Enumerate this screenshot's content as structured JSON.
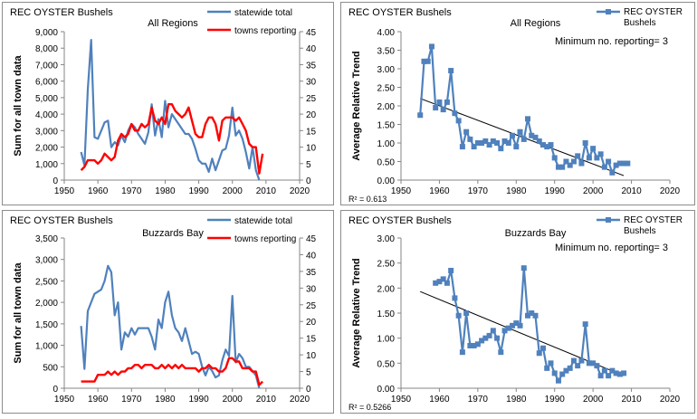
{
  "chart_data": [
    {
      "type": "line",
      "corner_label": "REC OYSTER Bushels",
      "title": "All Regions",
      "xlabel": "",
      "ylabel": "Sum for all town data",
      "xlim": [
        1950,
        2020
      ],
      "x_ticks": [
        "1950",
        "1960",
        "1970",
        "1980",
        "1990",
        "2000",
        "2010",
        "2020"
      ],
      "ylim": [
        0,
        9000
      ],
      "y_ticks": [
        "0",
        "1,000",
        "2,000",
        "3,000",
        "4,000",
        "5,000",
        "6,000",
        "7,000",
        "8,000",
        "9,000"
      ],
      "y2lim": [
        0,
        45
      ],
      "y2_ticks": [
        "0",
        "5",
        "10",
        "15",
        "20",
        "25",
        "30",
        "35",
        "40",
        "45"
      ],
      "legend": "top-right",
      "series": [
        {
          "name": "statewide total",
          "axis": "left",
          "color": "#4f81bd",
          "x": [
            1955,
            1956,
            1957,
            1958,
            1959,
            1960,
            1961,
            1962,
            1963,
            1964,
            1965,
            1966,
            1967,
            1968,
            1969,
            1970,
            1971,
            1972,
            1973,
            1974,
            1975,
            1976,
            1977,
            1978,
            1979,
            1980,
            1981,
            1982,
            1983,
            1984,
            1985,
            1986,
            1987,
            1988,
            1989,
            1990,
            1991,
            1992,
            1993,
            1994,
            1995,
            1996,
            1997,
            1998,
            1999,
            2000,
            2001,
            2002,
            2003,
            2004,
            2005,
            2006,
            2007,
            2008
          ],
          "values": [
            1700,
            900,
            5500,
            8500,
            2600,
            2500,
            3000,
            3500,
            3600,
            2000,
            2300,
            2100,
            2700,
            2300,
            3000,
            3400,
            3200,
            2800,
            2500,
            2200,
            2900,
            4600,
            2700,
            3700,
            2600,
            4800,
            3200,
            4000,
            3700,
            3400,
            3100,
            2800,
            2800,
            2500,
            1900,
            1200,
            1000,
            1000,
            500,
            1300,
            600,
            1200,
            1800,
            1900,
            2700,
            4400,
            2700,
            3000,
            2500,
            1700,
            700,
            2000,
            600,
            0
          ]
        },
        {
          "name": "towns reporting",
          "axis": "right",
          "color": "#ff0000",
          "x": [
            1955,
            1956,
            1957,
            1958,
            1959,
            1960,
            1961,
            1962,
            1963,
            1964,
            1965,
            1966,
            1967,
            1968,
            1969,
            1970,
            1971,
            1972,
            1973,
            1974,
            1975,
            1976,
            1977,
            1978,
            1979,
            1980,
            1981,
            1982,
            1983,
            1984,
            1985,
            1986,
            1987,
            1988,
            1989,
            1990,
            1991,
            1992,
            1993,
            1994,
            1995,
            1996,
            1997,
            1998,
            1999,
            2000,
            2001,
            2002,
            2003,
            2004,
            2005,
            2006,
            2007,
            2008,
            2009
          ],
          "values": [
            3,
            4,
            6,
            6,
            6,
            5,
            6,
            8,
            7,
            6,
            7,
            12,
            14,
            13,
            14,
            17,
            15,
            15,
            17,
            16,
            17,
            22,
            18,
            17,
            19,
            17,
            23,
            23,
            21,
            20,
            19,
            20,
            22,
            18,
            14,
            13,
            13,
            17,
            19,
            19,
            17,
            12,
            18,
            19,
            19,
            19,
            18,
            19,
            17,
            15,
            11,
            10,
            10,
            2,
            8
          ]
        }
      ]
    },
    {
      "type": "line",
      "corner_label": "REC OYSTER Bushels",
      "title": "All Regions",
      "annotation": "Minimum no. reporting= 3",
      "r2_label": "R² = 0.613",
      "xlabel": "",
      "ylabel": "Average Relative Trend",
      "xlim": [
        1950,
        2020
      ],
      "x_ticks": [
        "1950",
        "1960",
        "1970",
        "1980",
        "1990",
        "2000",
        "2010",
        "2020"
      ],
      "ylim": [
        0,
        4
      ],
      "y_ticks": [
        "0.00",
        "0.50",
        "1.00",
        "1.50",
        "2.00",
        "2.50",
        "3.00",
        "3.50",
        "4.00"
      ],
      "legend": "top-right",
      "trend": {
        "x": [
          1955,
          2008
        ],
        "y": [
          2.2,
          0.12
        ]
      },
      "series": [
        {
          "name": "REC OYSTER Bushels",
          "color": "#4f81bd",
          "x": [
            1955,
            1956,
            1957,
            1958,
            1959,
            1960,
            1961,
            1962,
            1963,
            1964,
            1965,
            1966,
            1967,
            1968,
            1969,
            1970,
            1971,
            1972,
            1973,
            1974,
            1975,
            1976,
            1977,
            1978,
            1979,
            1980,
            1981,
            1982,
            1983,
            1984,
            1985,
            1986,
            1987,
            1988,
            1989,
            1990,
            1991,
            1992,
            1993,
            1994,
            1995,
            1996,
            1997,
            1998,
            1999,
            2000,
            2001,
            2002,
            2003,
            2004,
            2005,
            2006,
            2007,
            2008,
            2009
          ],
          "values": [
            1.75,
            3.2,
            3.2,
            3.6,
            1.95,
            2.1,
            1.9,
            2.1,
            2.95,
            1.8,
            1.6,
            0.9,
            1.3,
            1.1,
            0.9,
            1.0,
            1.0,
            1.05,
            0.95,
            1.05,
            1.0,
            0.85,
            1.05,
            1.0,
            1.2,
            0.9,
            1.3,
            1.1,
            1.65,
            1.2,
            1.15,
            1.05,
            0.95,
            0.9,
            0.95,
            0.6,
            0.35,
            0.35,
            0.5,
            0.4,
            0.5,
            0.65,
            0.45,
            1.0,
            0.6,
            0.85,
            0.6,
            0.7,
            0.35,
            0.5,
            0.2,
            0.4,
            0.45,
            0.45,
            0.45
          ]
        }
      ]
    },
    {
      "type": "line",
      "corner_label": "REC OYSTER Bushels",
      "title": "Buzzards Bay",
      "xlabel": "",
      "ylabel": "Sum for all town data",
      "xlim": [
        1950,
        2020
      ],
      "x_ticks": [
        "1950",
        "1960",
        "1970",
        "1980",
        "1990",
        "2000",
        "2010",
        "2020"
      ],
      "ylim": [
        0,
        3500
      ],
      "y_ticks": [
        "0",
        "500",
        "1,000",
        "1,500",
        "2,000",
        "2,500",
        "3,000",
        "3,500"
      ],
      "y2lim": [
        0,
        45
      ],
      "y2_ticks": [
        "0",
        "5",
        "10",
        "15",
        "20",
        "25",
        "30",
        "35",
        "40",
        "45"
      ],
      "legend": "top-right",
      "series": [
        {
          "name": "statewide total",
          "axis": "left",
          "color": "#4f81bd",
          "x": [
            1955,
            1956,
            1957,
            1958,
            1959,
            1960,
            1961,
            1962,
            1963,
            1964,
            1965,
            1966,
            1967,
            1968,
            1969,
            1970,
            1971,
            1972,
            1973,
            1974,
            1975,
            1976,
            1977,
            1978,
            1979,
            1980,
            1981,
            1982,
            1983,
            1984,
            1985,
            1986,
            1987,
            1988,
            1989,
            1990,
            1991,
            1992,
            1993,
            1994,
            1995,
            1996,
            1997,
            1998,
            1999,
            2000,
            2001,
            2002,
            2003,
            2004,
            2005,
            2006,
            2007,
            2008
          ],
          "values": [
            1450,
            450,
            1800,
            2000,
            2200,
            2250,
            2300,
            2500,
            2850,
            2700,
            1700,
            2000,
            900,
            1300,
            1200,
            1400,
            1250,
            1400,
            1400,
            1400,
            1400,
            1200,
            900,
            1600,
            1400,
            2000,
            2250,
            1700,
            1400,
            1300,
            1100,
            1400,
            1100,
            800,
            850,
            800,
            500,
            300,
            500,
            400,
            250,
            300,
            650,
            900,
            750,
            2150,
            600,
            800,
            700,
            500,
            500,
            400,
            300,
            0
          ]
        },
        {
          "name": "towns reporting",
          "axis": "right",
          "color": "#ff0000",
          "x": [
            1955,
            1956,
            1957,
            1958,
            1959,
            1960,
            1961,
            1962,
            1963,
            1964,
            1965,
            1966,
            1967,
            1968,
            1969,
            1970,
            1971,
            1972,
            1973,
            1974,
            1975,
            1976,
            1977,
            1978,
            1979,
            1980,
            1981,
            1982,
            1983,
            1984,
            1985,
            1986,
            1987,
            1988,
            1989,
            1990,
            1991,
            1992,
            1993,
            1994,
            1995,
            1996,
            1997,
            1998,
            1999,
            2000,
            2001,
            2002,
            2003,
            2004,
            2005,
            2006,
            2007,
            2008,
            2009
          ],
          "values": [
            2,
            2,
            2,
            2,
            2,
            4,
            4,
            4,
            5,
            4,
            5,
            4,
            5,
            5,
            6,
            6,
            7,
            7,
            6,
            7,
            7,
            7,
            6,
            6,
            7,
            6,
            7,
            6,
            7,
            6,
            7,
            6,
            6,
            6,
            6,
            5,
            6,
            6,
            7,
            6,
            6,
            5,
            5,
            6,
            9,
            9,
            8,
            8,
            6,
            6,
            6,
            5,
            5,
            1,
            2
          ]
        }
      ]
    },
    {
      "type": "line",
      "corner_label": "REC OYSTER Bushels",
      "title": "Buzzards Bay",
      "annotation": "Minimum no. reporting= 3",
      "r2_label": "R² = 0.5266",
      "xlabel": "",
      "ylabel": "Average Relative Trend",
      "xlim": [
        1950,
        2020
      ],
      "x_ticks": [
        "1950",
        "1960",
        "1970",
        "1980",
        "1990",
        "2000",
        "2010",
        "2020"
      ],
      "ylim": [
        0,
        3
      ],
      "y_ticks": [
        "0.00",
        "0.50",
        "1.00",
        "1.50",
        "2.00",
        "2.50",
        "3.00"
      ],
      "legend": "top-right",
      "trend": {
        "x": [
          1955,
          2008
        ],
        "y": [
          1.93,
          0.25
        ]
      },
      "series": [
        {
          "name": "REC OYSTER Bushels",
          "color": "#4f81bd",
          "x": [
            1959,
            1960,
            1961,
            1962,
            1963,
            1964,
            1965,
            1966,
            1967,
            1968,
            1969,
            1970,
            1971,
            1972,
            1973,
            1974,
            1975,
            1976,
            1977,
            1978,
            1979,
            1980,
            1981,
            1982,
            1983,
            1984,
            1985,
            1986,
            1987,
            1988,
            1989,
            1990,
            1991,
            1992,
            1993,
            1994,
            1995,
            1996,
            1997,
            1998,
            1999,
            2000,
            2001,
            2002,
            2003,
            2004,
            2005,
            2006,
            2007,
            2008
          ],
          "values": [
            2.1,
            2.13,
            2.18,
            2.1,
            2.35,
            1.8,
            1.45,
            0.72,
            1.5,
            0.85,
            0.85,
            0.88,
            0.95,
            1.0,
            1.05,
            1.15,
            1.0,
            0.72,
            1.15,
            1.2,
            1.25,
            1.3,
            1.25,
            2.4,
            1.45,
            1.5,
            1.45,
            0.7,
            0.8,
            0.4,
            0.5,
            0.3,
            0.15,
            0.28,
            0.35,
            0.4,
            0.55,
            0.45,
            0.55,
            1.28,
            0.5,
            0.5,
            0.45,
            0.25,
            0.35,
            0.25,
            0.35,
            0.3,
            0.28,
            0.3
          ]
        }
      ]
    }
  ]
}
